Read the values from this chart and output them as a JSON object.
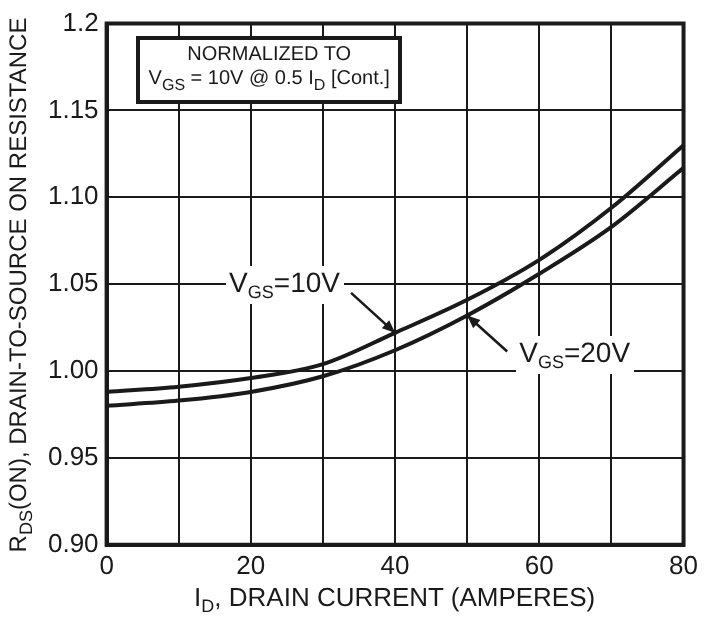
{
  "chart_data": {
    "type": "line",
    "xlabel": "I$_{D}$, DRAIN CURRENT (AMPERES)",
    "ylabel": "R$_{DS}$(ON), DRAIN-TO-SOURCE ON RESISTANCE",
    "annotations": [
      "NORMALIZED TO",
      "V$_{GS}$ = 10V  @  0.5 I$_{D}$ [Cont.]"
    ],
    "x": [
      0,
      10,
      20,
      30,
      40,
      50,
      60,
      70,
      80
    ],
    "series": [
      {
        "name": "V$_{GS}$=10V",
        "color": "#1a1a1a",
        "values": [
          0.988,
          0.991,
          0.996,
          1.004,
          1.022,
          1.041,
          1.064,
          1.094,
          1.13
        ]
      },
      {
        "name": "V$_{GS}$=20V",
        "color": "#1a1a1a",
        "values": [
          0.98,
          0.983,
          0.988,
          0.997,
          1.012,
          1.032,
          1.056,
          1.083,
          1.117
        ]
      }
    ],
    "xlim": [
      0,
      80
    ],
    "xticks": [
      0,
      {
        "value": 10,
        "label": null
      },
      20,
      {
        "value": 30,
        "label": null
      },
      40,
      {
        "value": 50,
        "label": null
      },
      60,
      {
        "value": 70,
        "label": null
      },
      80
    ],
    "ylim": [
      0.9,
      1.2
    ],
    "yticks": [
      {
        "value": 0.9,
        "label": "0.90"
      },
      {
        "value": 0.95,
        "label": "0.95"
      },
      {
        "value": 1.0,
        "label": "1.00"
      },
      {
        "value": 1.05,
        "label": "1.05"
      },
      {
        "value": 1.1,
        "label": "1.10"
      },
      {
        "value": 1.15,
        "label": "1.15"
      },
      {
        "value": 1.2,
        "label": "1.2"
      }
    ],
    "grid": true,
    "legend": false,
    "marker": "none",
    "line_style": "solid"
  }
}
